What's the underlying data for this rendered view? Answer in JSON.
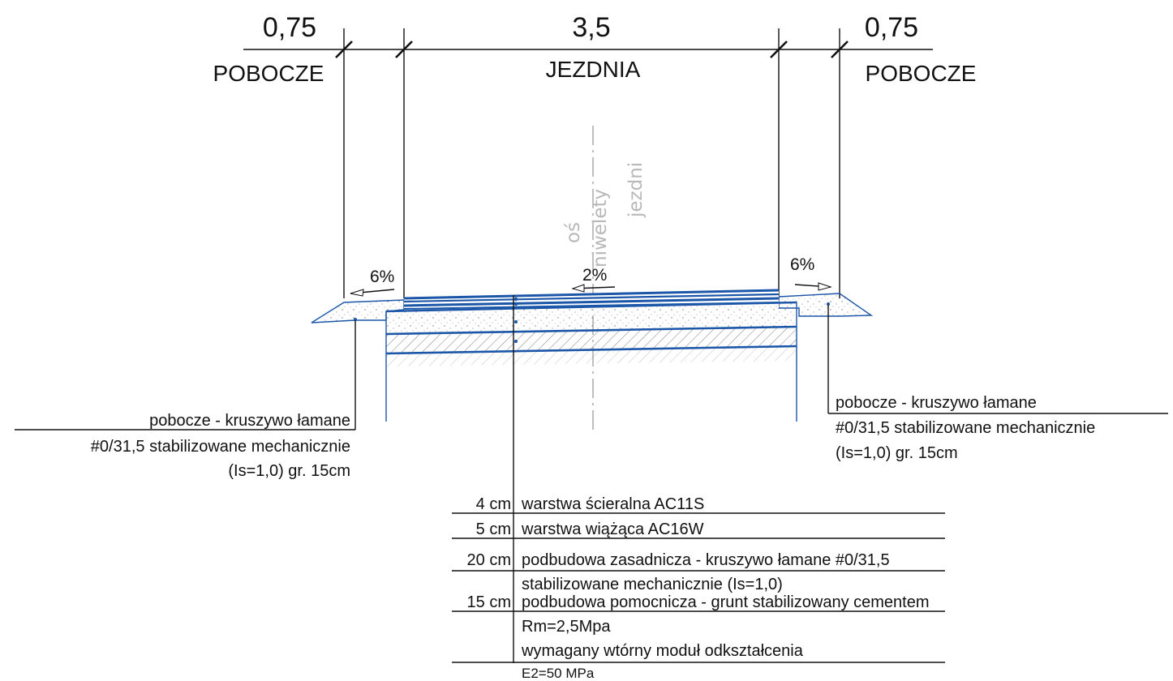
{
  "dimensions": {
    "left_shoulder_width": "0,75",
    "carriageway_width": "3,5",
    "right_shoulder_width": "0,75",
    "left_label": "POBOCZE",
    "center_label": "JEZDNIA",
    "right_label": "POBOCZE"
  },
  "axis_label": {
    "line1": "oś",
    "line2": "niwelety",
    "line3": "jezdni"
  },
  "slopes": {
    "left_shoulder": "6%",
    "carriageway": "2%",
    "right_shoulder": "6%"
  },
  "shoulder_note_left": {
    "line1": "pobocze - kruszywo łamane",
    "line2": "#0/31,5 stabilizowane mechanicznie",
    "line3": "(Is=1,0) gr. 15cm"
  },
  "shoulder_note_right": {
    "line1": "pobocze - kruszywo łamane",
    "line2": "#0/31,5 stabilizowane mechanicznie",
    "line3": "(Is=1,0) gr. 15cm"
  },
  "layers": [
    {
      "thickness": "4 cm",
      "line1": "warstwa ścieralna AC11S"
    },
    {
      "thickness": "5 cm",
      "line1": "warstwa wiążąca AC16W"
    },
    {
      "thickness": "20 cm",
      "line1": "podbudowa zasadnicza - kruszywo łamane #0/31,5",
      "line2": "stabilizowane mechanicznie (Is=1,0)"
    },
    {
      "thickness": "15 cm",
      "line1": "podbudowa pomocnicza - grunt stabilizowany cementem",
      "line2": "Rm=2,5Mpa"
    }
  ],
  "subgrade": {
    "line1": "wymagany wtórny moduł odkształcenia",
    "line2": "E2=50 MPa"
  }
}
